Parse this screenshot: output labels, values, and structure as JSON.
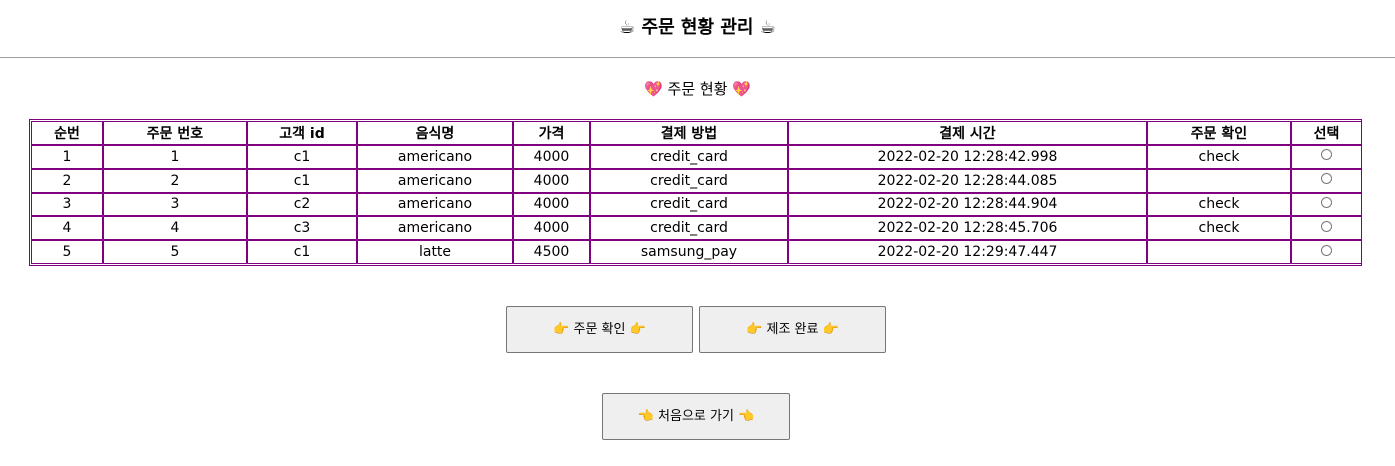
{
  "header": {
    "title": "주문 현황 관리",
    "title_emoji": "☕"
  },
  "section": {
    "title": "주문 현황",
    "title_emoji": "💖"
  },
  "table": {
    "columns": [
      "순번",
      "주문 번호",
      "고객 id",
      "음식명",
      "가격",
      "결제 방법",
      "결제 시간",
      "주문 확인",
      "선택"
    ],
    "rows": [
      [
        "1",
        "1",
        "c1",
        "americano",
        "4000",
        "credit_card",
        "2022-02-20 12:28:42.998",
        "check",
        ""
      ],
      [
        "2",
        "2",
        "c1",
        "americano",
        "4000",
        "credit_card",
        "2022-02-20 12:28:44.085",
        "",
        ""
      ],
      [
        "3",
        "3",
        "c2",
        "americano",
        "4000",
        "credit_card",
        "2022-02-20 12:28:44.904",
        "check",
        ""
      ],
      [
        "4",
        "4",
        "c3",
        "americano",
        "4000",
        "credit_card",
        "2022-02-20 12:28:45.706",
        "check",
        ""
      ],
      [
        "5",
        "5",
        "c1",
        "latte",
        "4500",
        "samsung_pay",
        "2022-02-20 12:29:47.447",
        "",
        ""
      ]
    ],
    "border_color": "#800080"
  },
  "buttons": {
    "confirm_label": "주문 확인",
    "confirm_icon": "👉",
    "complete_label": "제조 완료",
    "complete_icon": "👉",
    "home_label": "처음으로 가기",
    "home_icon": "👈"
  }
}
